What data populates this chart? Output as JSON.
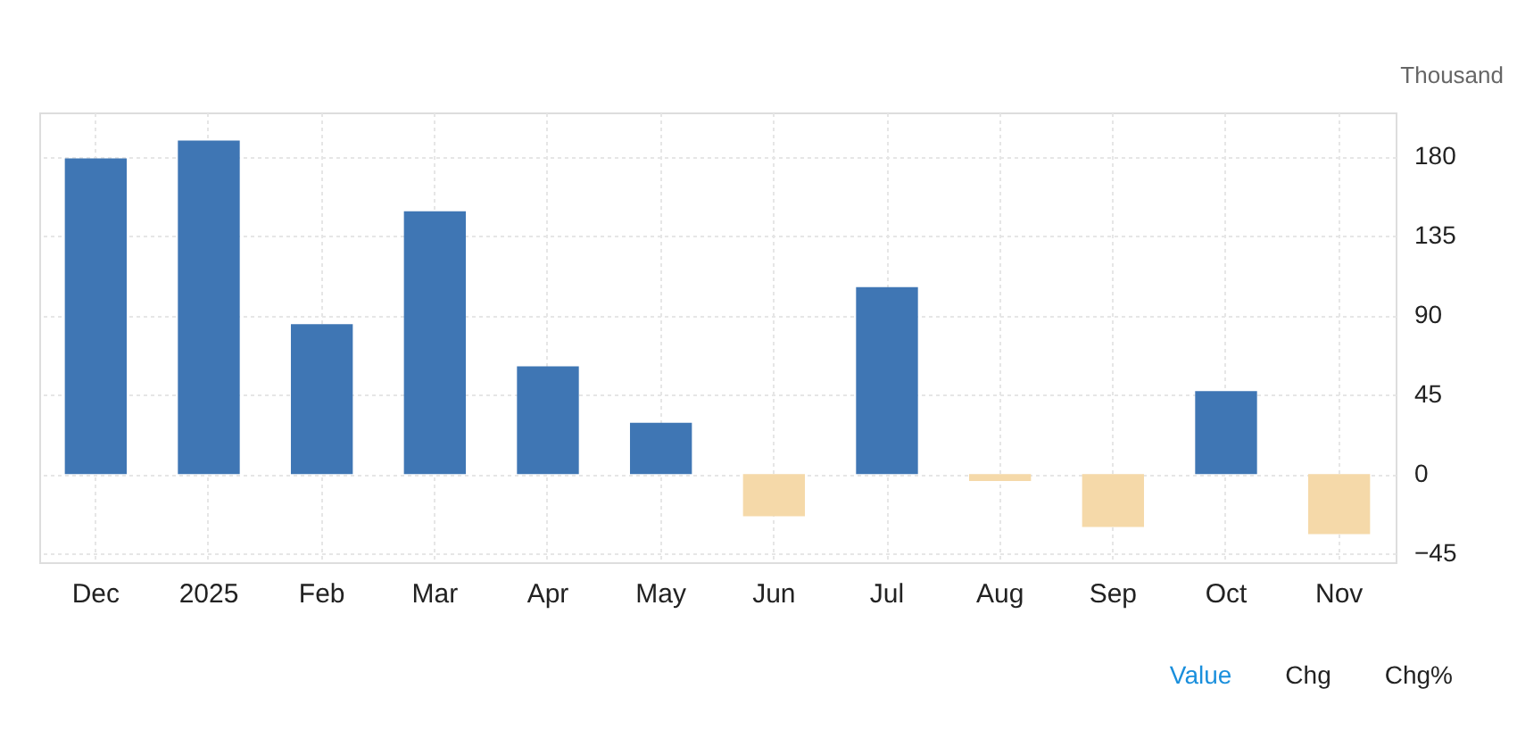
{
  "chart_data": {
    "type": "bar",
    "ylabel": "Thousand",
    "categories": [
      "Dec",
      "2025",
      "Feb",
      "Mar",
      "Apr",
      "May",
      "Jun",
      "Jul",
      "Aug",
      "Sep",
      "Oct",
      "Nov"
    ],
    "values": [
      179,
      189,
      85,
      149,
      61,
      29,
      -24,
      106,
      -4,
      -30,
      47,
      -34
    ],
    "colors": [
      "#3f76b4",
      "#3f76b4",
      "#3f76b4",
      "#3f76b4",
      "#3f76b4",
      "#3f76b4",
      "#f5d9a9",
      "#3f76b4",
      "#f5d9a9",
      "#f5d9a9",
      "#3f76b4",
      "#f5d9a9"
    ],
    "ylim": [
      -50,
      205
    ],
    "yticks": [
      -45,
      0,
      45,
      90,
      135,
      180
    ],
    "grid": true,
    "annotations": [
      "Value",
      "Chg",
      "Chg%"
    ]
  }
}
